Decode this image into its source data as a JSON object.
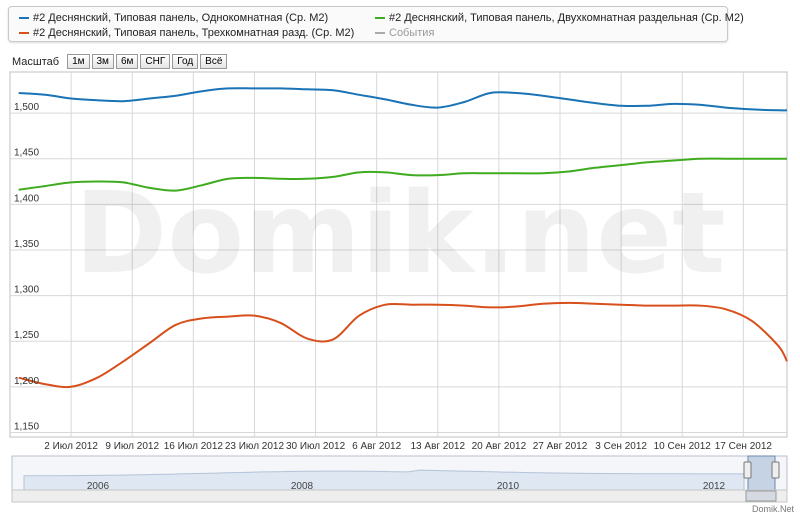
{
  "legend": {
    "items": [
      {
        "label": "#2 Деснянский, Типовая панель, Однокомнатная (Ср. М2)",
        "color": "#1a73b6"
      },
      {
        "label": "#2 Деснянский, Типовая панель, Двухкомнатная раздельная (Ср. М2)",
        "color": "#3fab1f"
      },
      {
        "label": "#2 Деснянский, Типовая панель, Трехкомнатная разд. (Ср. М2)",
        "color": "#d7501b"
      },
      {
        "label": "События",
        "color": "#aaaaaa"
      }
    ]
  },
  "zoom": {
    "label": "Масштаб",
    "buttons": [
      "1м",
      "3м",
      "6м",
      "СНГ",
      "Год",
      "Всё"
    ]
  },
  "watermark": "Domik.net",
  "footer": "Domik.Net",
  "chart_data": {
    "type": "line",
    "x": [
      "2012-06-26",
      "2012-06-29",
      "2012-07-02",
      "2012-07-05",
      "2012-07-08",
      "2012-07-11",
      "2012-07-14",
      "2012-07-17",
      "2012-07-20",
      "2012-07-23",
      "2012-07-26",
      "2012-07-29",
      "2012-08-01",
      "2012-08-04",
      "2012-08-07",
      "2012-08-10",
      "2012-08-13",
      "2012-08-16",
      "2012-08-19",
      "2012-08-22",
      "2012-08-25",
      "2012-08-28",
      "2012-08-31",
      "2012-09-03",
      "2012-09-06",
      "2012-09-09",
      "2012-09-12",
      "2012-09-15",
      "2012-09-18",
      "2012-09-21",
      "2012-09-22"
    ],
    "series": [
      {
        "name": "#2 Деснянский, Типовая панель, Однокомнатная (Ср. М2)",
        "color": "#1a73b6",
        "values": [
          1522,
          1520,
          1516,
          1514,
          1513,
          1516,
          1519,
          1524,
          1527,
          1527,
          1527,
          1526,
          1525,
          1520,
          1515,
          1509,
          1506,
          1512,
          1522,
          1522,
          1519,
          1515,
          1511,
          1508,
          1508,
          1510,
          1509,
          1506,
          1504,
          1503,
          1503
        ]
      },
      {
        "name": "#2 Деснянский, Типовая панель, Двухкомнатная раздельная (Ср. М2)",
        "color": "#3fab1f",
        "values": [
          1416,
          1420,
          1424,
          1425,
          1424,
          1418,
          1415,
          1421,
          1428,
          1429,
          1428,
          1428,
          1430,
          1435,
          1435,
          1432,
          1432,
          1434,
          1434,
          1434,
          1434,
          1436,
          1440,
          1443,
          1446,
          1448,
          1450,
          1450,
          1450,
          1450,
          1450
        ]
      },
      {
        "name": "#2 Деснянский, Типовая панель, Трехкомнатная разд. (Ср. М2)",
        "color": "#d7501b",
        "values": [
          1210,
          1203,
          1200,
          1210,
          1228,
          1248,
          1268,
          1275,
          1277,
          1278,
          1270,
          1253,
          1252,
          1278,
          1290,
          1290,
          1290,
          1289,
          1287,
          1288,
          1291,
          1292,
          1291,
          1290,
          1289,
          1289,
          1289,
          1285,
          1272,
          1245,
          1228
        ]
      }
    ],
    "x_tick_labels": [
      "2 Июл 2012",
      "9 Июл 2012",
      "16 Июл 2012",
      "23 Июл 2012",
      "30 Июл 2012",
      "6 Авг 2012",
      "13 Авг 2012",
      "20 Авг 2012",
      "27 Авг 2012",
      "3 Сен 2012",
      "10 Сен 2012",
      "17 Сен 2012"
    ],
    "y_ticks": [
      1150,
      1200,
      1250,
      1300,
      1350,
      1400,
      1450,
      1500
    ],
    "y_tick_labels": [
      "1,150",
      "1,200",
      "1,250",
      "1,300",
      "1,350",
      "1,400",
      "1,450",
      "1,500"
    ],
    "ylim": [
      1145,
      1545
    ],
    "grid": true,
    "navigator": {
      "labels": [
        "2006",
        "2008",
        "2010",
        "2012"
      ]
    }
  }
}
